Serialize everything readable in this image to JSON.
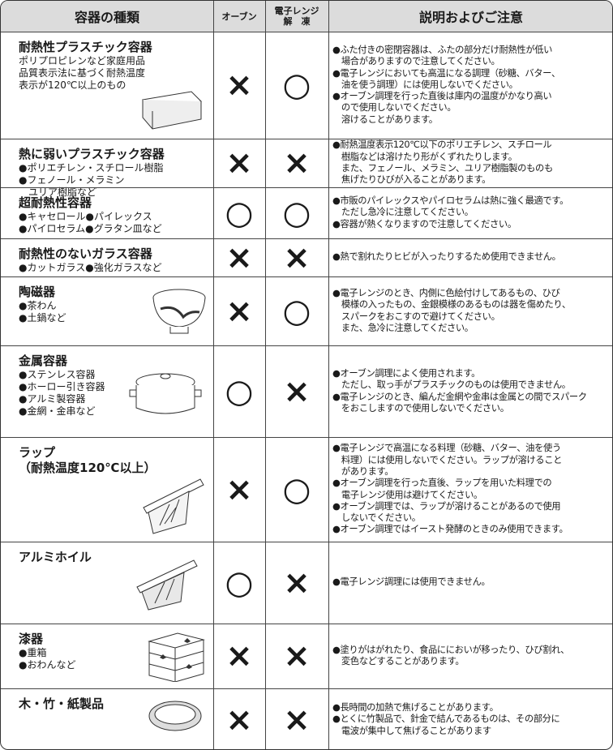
{
  "header": {
    "type": "容器の種類",
    "oven": "オーブン",
    "microwave": [
      "電子レンジ",
      "解　凍"
    ],
    "notes": "説明およびご注意"
  },
  "rows": [
    {
      "name": [
        "耐熱性プラスチック容器"
      ],
      "sub": [
        "ポリプロピレンなど家庭用品",
        "品質表示法に基づく耐熱温度",
        "表示が120℃以上のもの"
      ],
      "oven": "×",
      "microwave": "○",
      "notes": [
        "●ふた付きの密閉容器は、ふたの部分だけ耐熱性が低い",
        "　場合がありますので注意してください。",
        "●電子レンジにおいても高温になる調理（砂糖、バター、",
        "　油を使う調理）には使用しないでください。",
        "●オーブン調理を行った直後は庫内の温度がかなり高い",
        "　ので使用しないでください。",
        "　溶けることがあります。"
      ]
    },
    {
      "name": [
        "熱に弱いプラスチック容器"
      ],
      "sub": [
        "●ポリエチレン・スチロール樹脂",
        "●フェノール・メラミン",
        "　ユリア樹脂など"
      ],
      "oven": "×",
      "microwave": "×",
      "notes": [
        "●耐熱温度表示120℃以下のポリエチレン、スチロール",
        "　樹脂などは溶けたり形がくずれたりします。",
        "　また、フェノール、メラミン、ユリア樹脂製のものも",
        "　焦げたりひびが入ることがあります。"
      ]
    },
    {
      "name": [
        "超耐熱性容器"
      ],
      "sub": [
        "●キャセロール●パイレックス",
        "●パイロセラム●グラタン皿など"
      ],
      "oven": "○",
      "microwave": "○",
      "notes": [
        "●市販のパイレックスやパイロセラムは熱に強く最適です。",
        "　ただし急冷に注意してください。",
        "●容器が熱くなりますので注意してください。"
      ]
    },
    {
      "name": [
        "耐熱性のないガラス容器"
      ],
      "sub": [
        "●カットガラス●強化ガラスなど"
      ],
      "oven": "×",
      "microwave": "×",
      "notes": [
        "●熱で割れたりヒビが入ったりするため使用できません。"
      ]
    },
    {
      "name": [
        "陶磁器"
      ],
      "sub": [
        "●茶わん",
        "●土鍋など"
      ],
      "oven": "×",
      "microwave": "○",
      "notes": [
        "●電子レンジのとき、内側に色絵付けしてあるもの、ひび",
        "　模様の入ったもの、金銀模様のあるものは器を傷めたり、",
        "　スパークをおこすので避けてください。",
        "　また、急冷に注意してください。"
      ]
    },
    {
      "name": [
        "金属容器"
      ],
      "sub": [
        "●ステンレス容器",
        "●ホーロー引き容器",
        "●アルミ製容器",
        "●金網・金串など"
      ],
      "oven": "○",
      "microwave": "×",
      "notes": [
        "●オーブン調理によく使用されます。",
        "　ただし、取っ手がプラスチックのものは使用できません。",
        "●電子レンジのとき、編んだ金網や金串は金属との間でスパーク",
        "　をおこしますので使用しないでください。"
      ]
    },
    {
      "name": [
        "ラップ",
        "（耐熱温度120℃以上）"
      ],
      "sub": [],
      "oven": "×",
      "microwave": "○",
      "notes": [
        "●電子レンジで高温になる料理（砂糖、バター、油を使う",
        "　料理）には使用しないでください。ラップが溶けること",
        "　があります。",
        "●オーブン調理を行った直後、ラップを用いた料理での",
        "　電子レンジ使用は避けてください。",
        "●オーブン調理では、ラップが溶けることがあるので使用",
        "　しないでください。",
        "●オーブン調理ではイースト発酵のときのみ使用できます。"
      ]
    },
    {
      "name": [
        "アルミホイル"
      ],
      "sub": [],
      "oven": "○",
      "microwave": "×",
      "notes": [
        "●電子レンジ調理には使用できません。"
      ]
    },
    {
      "name": [
        "漆器"
      ],
      "sub": [
        "●重箱",
        "●おわんなど"
      ],
      "oven": "×",
      "microwave": "×",
      "notes": [
        "●塗りがはがれたり、食品ににおいが移ったり、ひび割れ、",
        "　変色などすることがあります。"
      ]
    },
    {
      "name": [
        "木・竹・紙製品"
      ],
      "sub": [],
      "oven": "×",
      "microwave": "×",
      "notes": [
        "●長時間の加熱で焦げることがあります。",
        "●とくに竹製品で、針金で結んであるものは、その部分に",
        "　電波が集中して焦げることがあります"
      ]
    }
  ]
}
